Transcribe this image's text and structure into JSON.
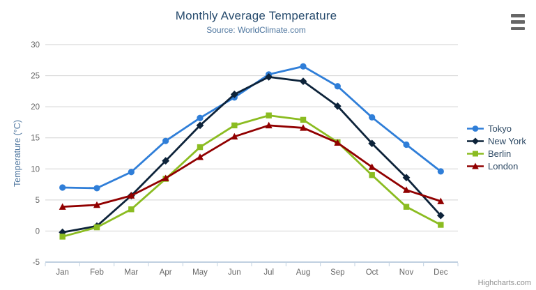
{
  "chart_data": {
    "type": "line",
    "title": "Monthly Average Temperature",
    "subtitle": "Source: WorldClimate.com",
    "xlabel": "",
    "ylabel": "Temperature (°C)",
    "ylim": [
      -5,
      30
    ],
    "ytick_step": 5,
    "ytick_labels": [
      "-5",
      "0",
      "5",
      "10",
      "15",
      "20",
      "25",
      "30"
    ],
    "grid": true,
    "legend_position": "right",
    "categories": [
      "Jan",
      "Feb",
      "Mar",
      "Apr",
      "May",
      "Jun",
      "Jul",
      "Aug",
      "Sep",
      "Oct",
      "Nov",
      "Dec"
    ],
    "series": [
      {
        "name": "Tokyo",
        "color": "#2f7ed8",
        "marker": "circle",
        "values": [
          7.0,
          6.9,
          9.5,
          14.5,
          18.2,
          21.5,
          25.2,
          26.5,
          23.3,
          18.3,
          13.9,
          9.6
        ]
      },
      {
        "name": "New York",
        "color": "#0d233a",
        "marker": "diamond",
        "values": [
          -0.2,
          0.8,
          5.7,
          11.3,
          17.0,
          22.0,
          24.8,
          24.1,
          20.1,
          14.1,
          8.6,
          2.5
        ]
      },
      {
        "name": "Berlin",
        "color": "#8bbc21",
        "marker": "square",
        "values": [
          -0.9,
          0.6,
          3.5,
          8.4,
          13.5,
          17.0,
          18.6,
          17.9,
          14.3,
          9.0,
          3.9,
          1.0
        ]
      },
      {
        "name": "London",
        "color": "#910000",
        "marker": "triangle",
        "values": [
          3.9,
          4.2,
          5.7,
          8.5,
          11.9,
          15.2,
          17.0,
          16.6,
          14.2,
          10.3,
          6.6,
          4.8
        ]
      }
    ]
  },
  "credits": {
    "label": "Highcharts.com"
  },
  "export_menu": {
    "icon": "hamburger-icon"
  },
  "theme": {
    "title_color": "#274b6d",
    "subtitle_color": "#4d759e",
    "axis_title_color": "#4d759e",
    "axis_label_color": "#666666",
    "axis_line_color": "#c0d0e0",
    "gridline_color": "#d2d2d2",
    "legend_text_color": "#2d4964",
    "credits_color": "#909090",
    "menu_icon_color": "#666666",
    "background": "#ffffff"
  }
}
